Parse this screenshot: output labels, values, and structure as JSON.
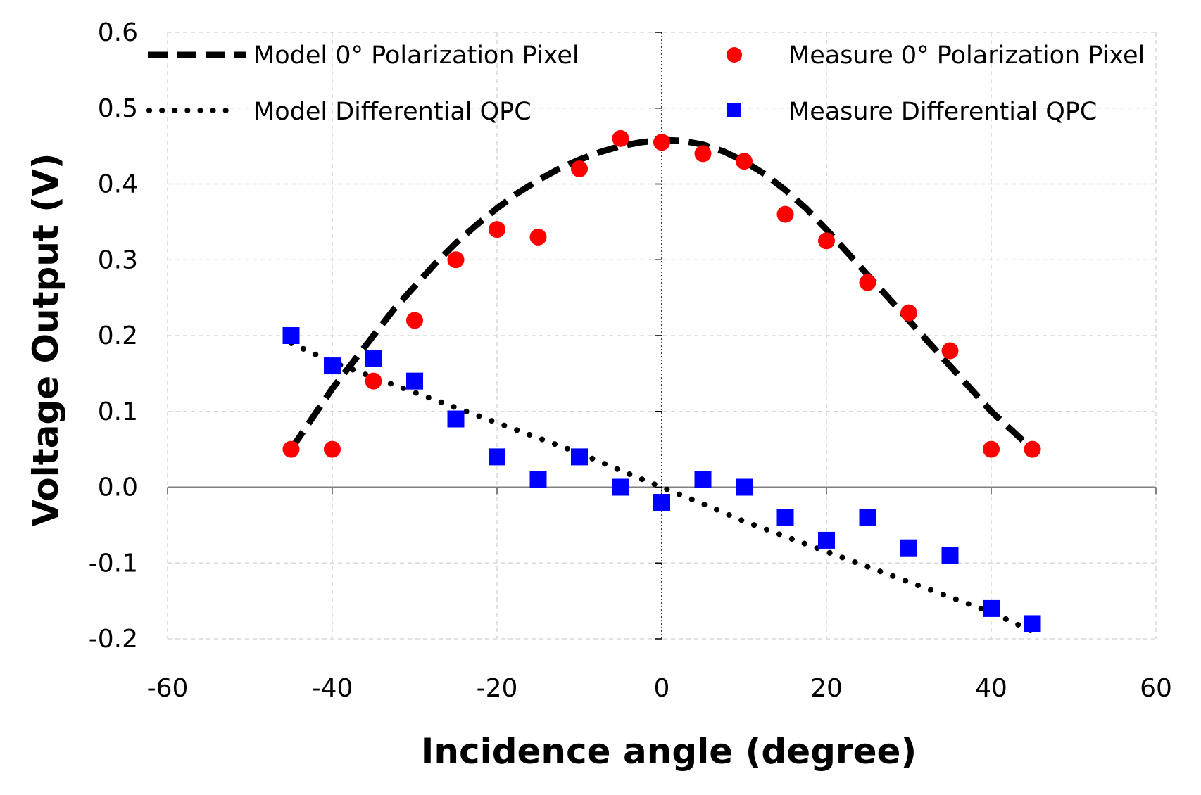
{
  "chart_data": {
    "type": "scatter",
    "title": "",
    "xlabel": "Incidence angle (degree)",
    "ylabel": "Voltage Output (V)",
    "xlim": [
      -60,
      60
    ],
    "ylim": [
      -0.2,
      0.6
    ],
    "xticks": [
      -60,
      -40,
      -20,
      0,
      20,
      40,
      60
    ],
    "xtick_labels": [
      "-60",
      "-40",
      "-20",
      "0",
      "20",
      "40",
      "60"
    ],
    "yticks": [
      -0.2,
      -0.1,
      0.0,
      0.1,
      0.2,
      0.3,
      0.4,
      0.5,
      0.6
    ],
    "ytick_labels": [
      "-0.2",
      "-0.1",
      "0.0",
      "0.1",
      "0.2",
      "0.3",
      "0.4",
      "0.5",
      "0.6"
    ],
    "grid": true,
    "legend_position": "top",
    "series": [
      {
        "name": "Model 0° Polarization Pixel",
        "kind": "line",
        "style": "dashed",
        "color": "#000000",
        "x": [
          -45,
          -42.5,
          -40,
          -37.5,
          -35,
          -32.5,
          -30,
          -27.5,
          -25,
          -22.5,
          -20,
          -17.5,
          -15,
          -12.5,
          -10,
          -7.5,
          -5,
          -2.5,
          0,
          2.5,
          5,
          7.5,
          10,
          12.5,
          15,
          17.5,
          20,
          22.5,
          25,
          27.5,
          30,
          32.5,
          35,
          37.5,
          40,
          42.5,
          45
        ],
        "y": [
          0.05,
          0.09,
          0.13,
          0.165,
          0.2,
          0.235,
          0.265,
          0.295,
          0.322,
          0.346,
          0.368,
          0.388,
          0.405,
          0.42,
          0.432,
          0.442,
          0.45,
          0.455,
          0.458,
          0.457,
          0.452,
          0.443,
          0.43,
          0.413,
          0.392,
          0.368,
          0.34,
          0.31,
          0.28,
          0.25,
          0.22,
          0.19,
          0.16,
          0.13,
          0.1,
          0.075,
          0.05
        ]
      },
      {
        "name": "Model Differential QPC",
        "kind": "line",
        "style": "dotted",
        "color": "#000000",
        "x": [
          -45,
          -40,
          -35,
          -30,
          -25,
          -20,
          -15,
          -10,
          -5,
          0,
          5,
          10,
          15,
          20,
          25,
          30,
          35,
          40,
          45
        ],
        "y": [
          0.19,
          0.165,
          0.145,
          0.125,
          0.105,
          0.085,
          0.065,
          0.045,
          0.022,
          0.0,
          -0.022,
          -0.045,
          -0.065,
          -0.085,
          -0.105,
          -0.125,
          -0.145,
          -0.165,
          -0.19
        ]
      },
      {
        "name": "Measure 0° Polarization Pixel",
        "kind": "scatter",
        "marker": "circle",
        "color": "#ff0000",
        "x": [
          -45,
          -40,
          -35,
          -30,
          -25,
          -20,
          -15,
          -10,
          -5,
          0,
          5,
          10,
          15,
          20,
          25,
          30,
          35,
          40,
          45
        ],
        "y": [
          0.05,
          0.05,
          0.14,
          0.22,
          0.3,
          0.34,
          0.33,
          0.42,
          0.46,
          0.455,
          0.44,
          0.43,
          0.36,
          0.325,
          0.27,
          0.23,
          0.18,
          0.05,
          0.05
        ]
      },
      {
        "name": "Measure Differential QPC",
        "kind": "scatter",
        "marker": "square",
        "color": "#0000ff",
        "x": [
          -45,
          -40,
          -35,
          -30,
          -25,
          -20,
          -15,
          -10,
          -5,
          0,
          5,
          10,
          15,
          20,
          25,
          30,
          35,
          40,
          45
        ],
        "y": [
          0.2,
          0.16,
          0.17,
          0.14,
          0.09,
          0.04,
          0.01,
          0.04,
          0.0,
          -0.02,
          0.01,
          0.0,
          -0.04,
          -0.07,
          -0.04,
          -0.08,
          -0.09,
          -0.16,
          -0.18
        ]
      }
    ]
  }
}
